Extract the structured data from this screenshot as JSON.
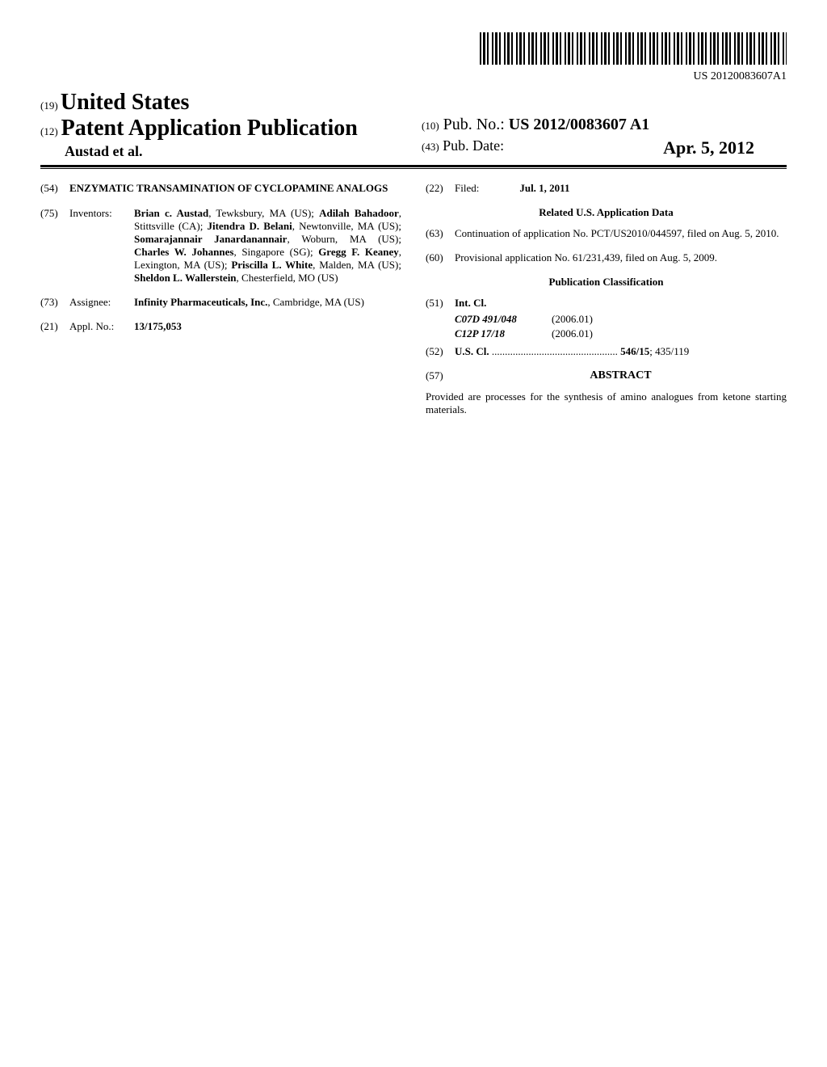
{
  "barcode_number": "US 20120083607A1",
  "header": {
    "country_prefix": "(19)",
    "country": "United States",
    "pub_prefix": "(12)",
    "publication_type": "Patent Application Publication",
    "author_line": "Austad et al.",
    "pubno_prefix": "(10)",
    "pubno_label": "Pub. No.:",
    "pubno_value": "US 2012/0083607 A1",
    "pubdate_prefix": "(43)",
    "pubdate_label": "Pub. Date:",
    "pubdate_value": "Apr. 5, 2012"
  },
  "left": {
    "title_num": "(54)",
    "title": "ENZYMATIC TRANSAMINATION OF CYCLOPAMINE ANALOGS",
    "inventors_num": "(75)",
    "inventors_label": "Inventors:",
    "inventors_html": "<span class='bold-inline'>Brian c. Austad</span>, Tewksbury, MA (US); <span class='bold-inline'>Adilah Bahadoor</span>, Stittsville (CA); <span class='bold-inline'>Jitendra D. Belani</span>, Newtonville, MA (US); <span class='bold-inline'>Somarajannair Janardanannair</span>, Woburn, MA (US); <span class='bold-inline'>Charles W. Johannes</span>, Singapore (SG); <span class='bold-inline'>Gregg F. Keaney</span>, Lexington, MA (US); <span class='bold-inline'>Priscilla L. White</span>, Malden, MA (US); <span class='bold-inline'>Sheldon L. Wallerstein</span>, Chesterfield, MO (US)",
    "assignee_num": "(73)",
    "assignee_label": "Assignee:",
    "assignee_html": "<span class='bold-inline'>Infinity Pharmaceuticals, Inc.</span>, Cambridge, MA (US)",
    "applno_num": "(21)",
    "applno_label": "Appl. No.:",
    "applno_value": "13/175,053"
  },
  "right": {
    "filed_num": "(22)",
    "filed_label": "Filed:",
    "filed_value": "Jul. 1, 2011",
    "related_header": "Related U.S. Application Data",
    "cont_num": "(63)",
    "cont_text": "Continuation of application No. PCT/US2010/044597, filed on Aug. 5, 2010.",
    "prov_num": "(60)",
    "prov_text": "Provisional application No. 61/231,439, filed on Aug. 5, 2009.",
    "pubclass_header": "Publication Classification",
    "intcl_num": "(51)",
    "intcl_label": "Int. Cl.",
    "intcl_rows": [
      {
        "code": "C07D 491/048",
        "year": "(2006.01)"
      },
      {
        "code": "C12P 17/18",
        "year": "(2006.01)"
      }
    ],
    "uscl_num": "(52)",
    "uscl_label": "U.S. Cl.",
    "uscl_value_bold": "546/15",
    "uscl_value_rest": "; 435/119",
    "abstract_num": "(57)",
    "abstract_label": "ABSTRACT",
    "abstract_text": "Provided are processes for the synthesis of amino analogues from ketone starting materials."
  }
}
